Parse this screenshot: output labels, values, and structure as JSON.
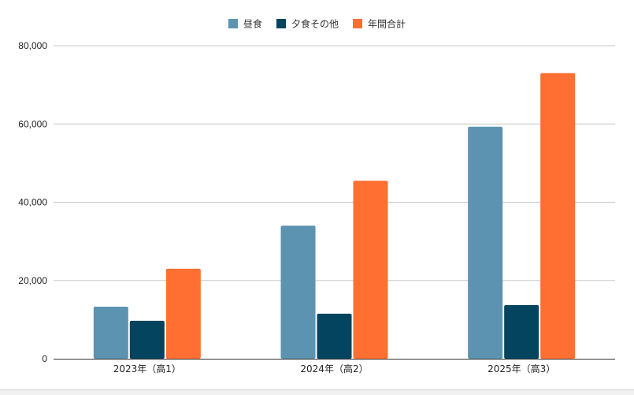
{
  "chart_data": {
    "type": "bar",
    "categories": [
      "2023年（高1）",
      "2024年（高2）",
      "2025年（高3）"
    ],
    "series": [
      {
        "name": "昼食",
        "values": [
          13300,
          34000,
          59300
        ],
        "color": "#5b93b1"
      },
      {
        "name": "夕食その他",
        "values": [
          9700,
          11500,
          13700
        ],
        "color": "#05445e"
      },
      {
        "name": "年間合計",
        "values": [
          23000,
          45500,
          73000
        ],
        "color": "#ff6f31"
      }
    ],
    "ylim": [
      0,
      80000
    ],
    "yticks": [
      0,
      20000,
      40000,
      60000,
      80000
    ],
    "ytick_labels": [
      "0",
      "20,000",
      "40,000",
      "60,000",
      "80,000"
    ],
    "grid": true,
    "legend_position": "top-center",
    "title": "",
    "xlabel": "",
    "ylabel": ""
  }
}
